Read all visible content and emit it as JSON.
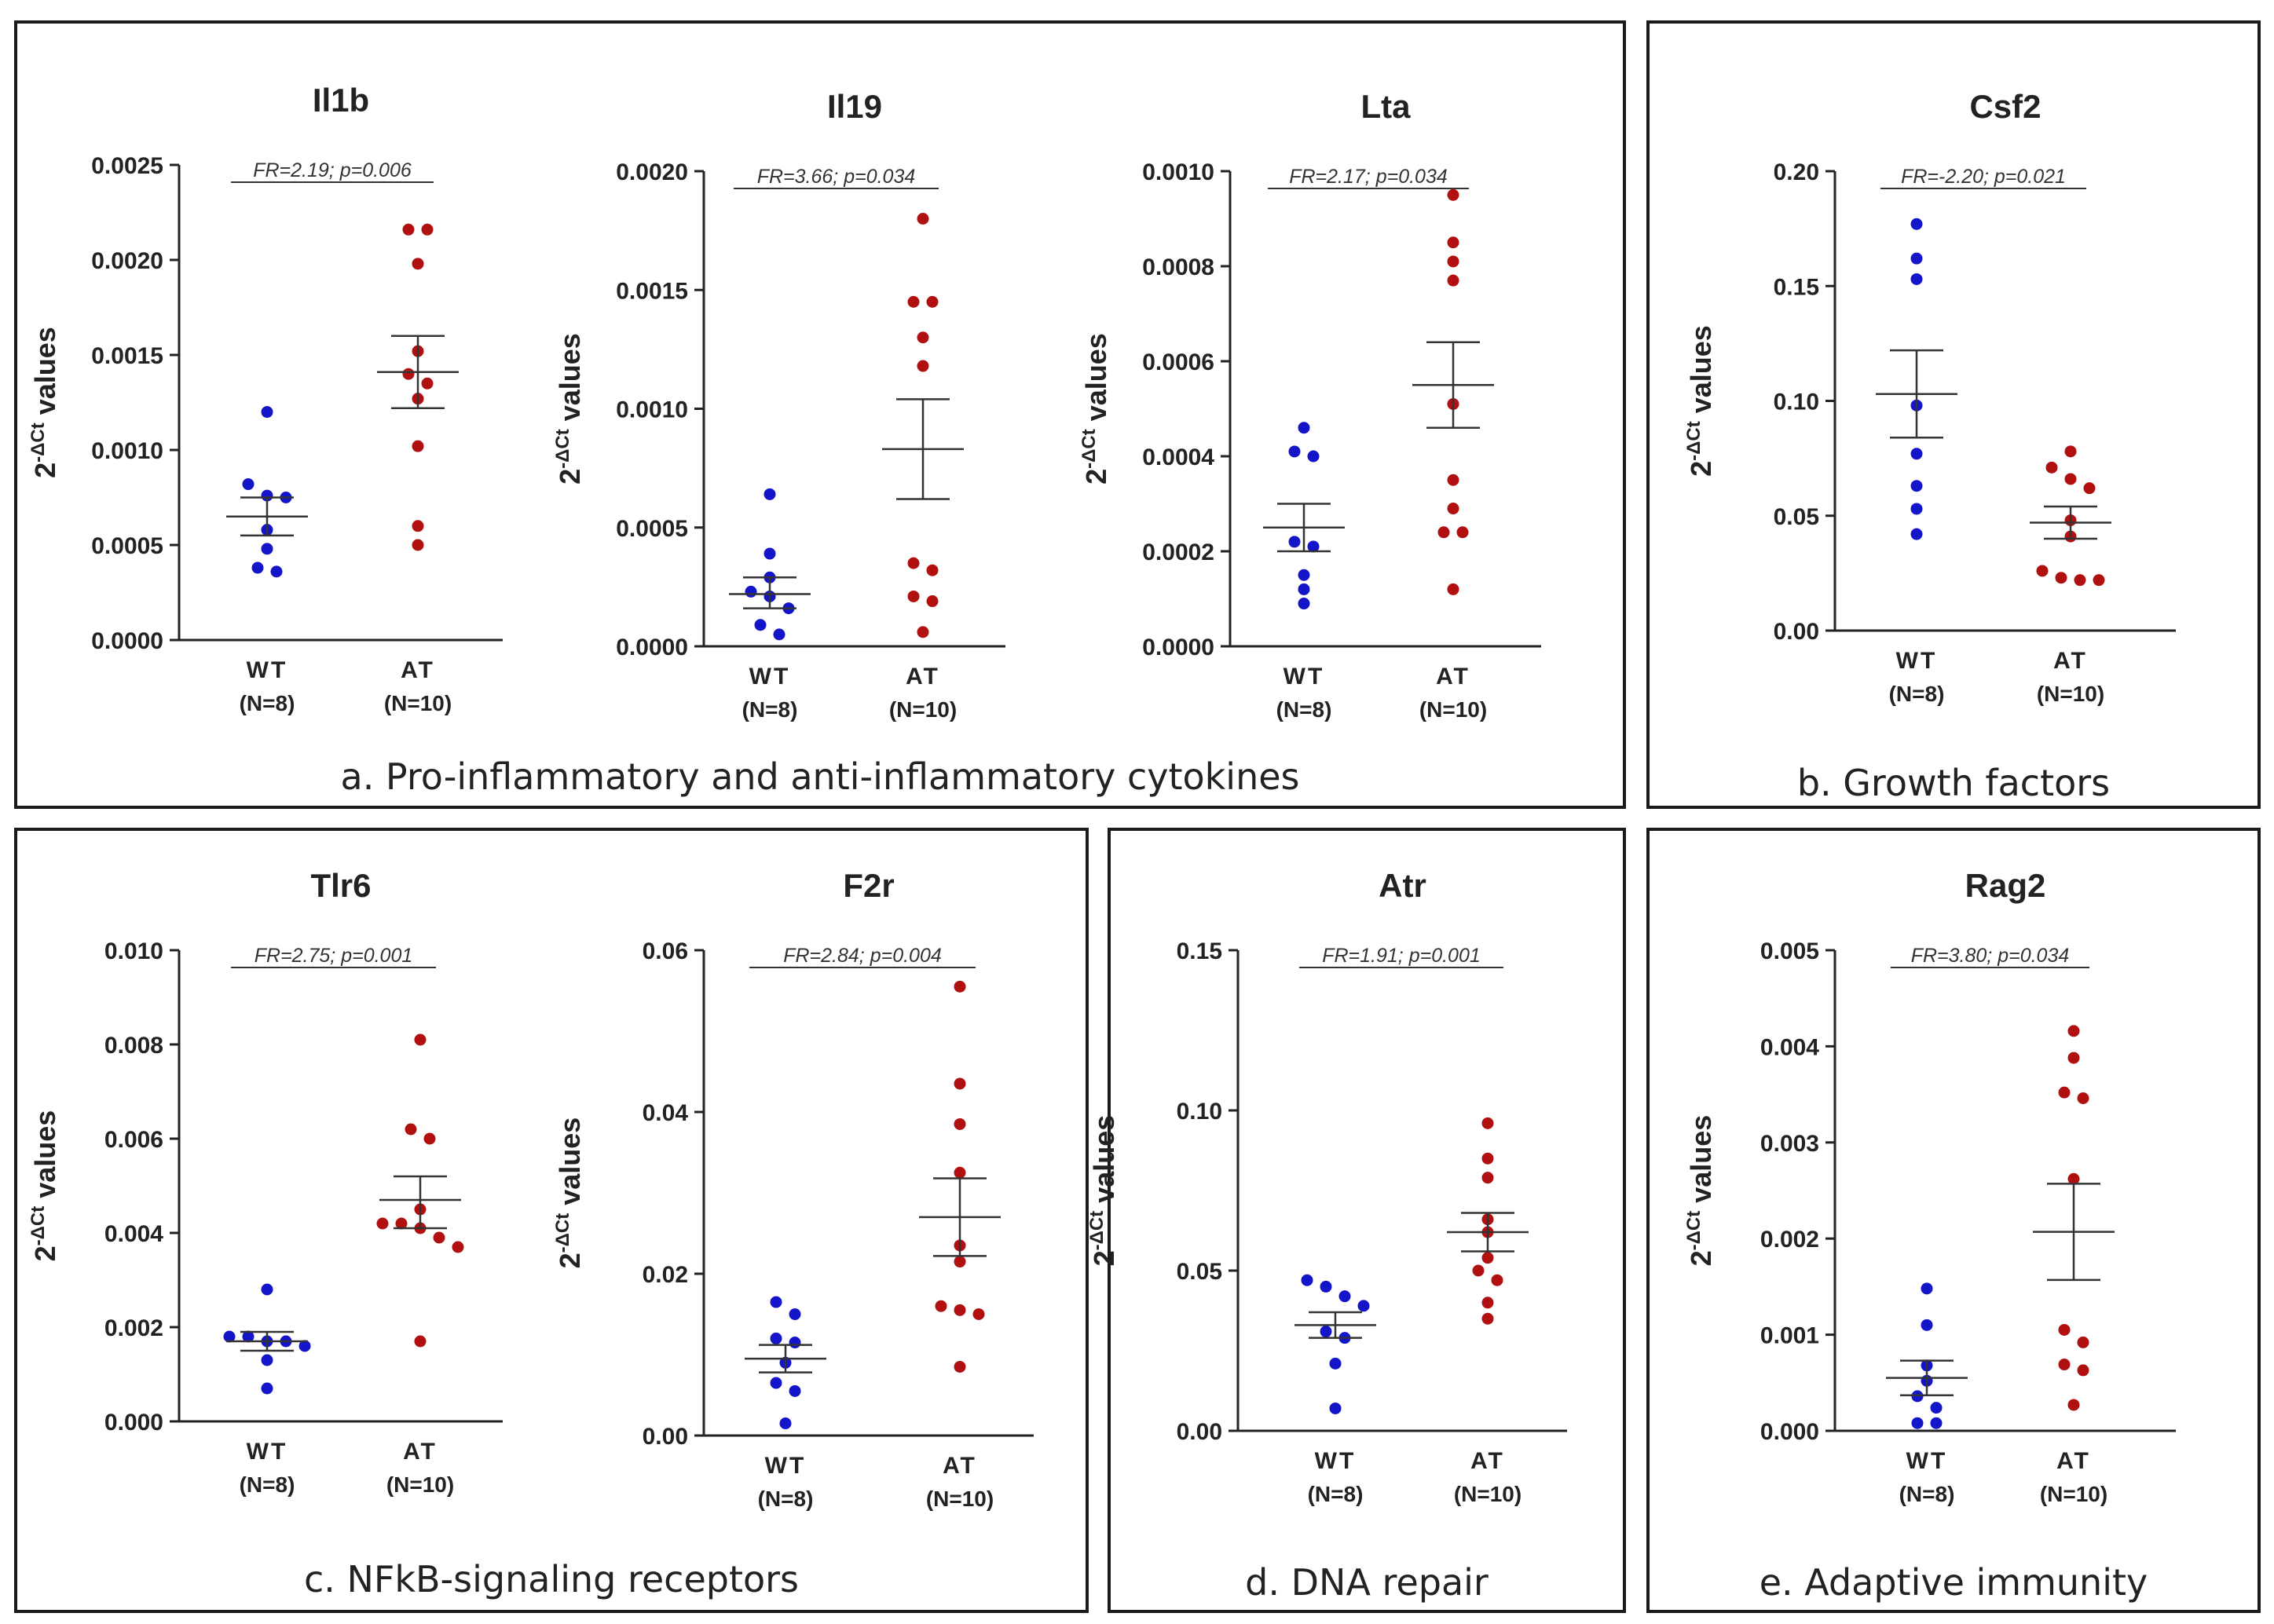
{
  "colors": {
    "wt": "#1414c8",
    "at": "#b01010",
    "axis": "#222222",
    "mean": "#333333",
    "frame": "#1a1a1a"
  },
  "panels": [
    {
      "id": "a",
      "caption": "a. Pro-inflammatory and anti-inflammatory cytokines"
    },
    {
      "id": "b",
      "caption": "b. Growth factors"
    },
    {
      "id": "c",
      "caption": "c. NFkB-signaling receptors"
    },
    {
      "id": "d",
      "caption": "d. DNA repair"
    },
    {
      "id": "e",
      "caption": "e. Adaptive immunity"
    }
  ],
  "ylabel": {
    "prefix": "2",
    "sup": "-ΔCt",
    "suffix": " values"
  },
  "chart_data": [
    {
      "type": "scatter",
      "panel": "a",
      "title": "Il1b",
      "annotation": "FR=2.19; p=0.006",
      "ylim": [
        0,
        0.0025
      ],
      "ticks": [
        "0.0000",
        "0.0005",
        "0.0010",
        "0.0015",
        "0.0020",
        "0.0025"
      ],
      "categories": [
        "WT",
        "AT"
      ],
      "category_n": [
        "(N=8)",
        "(N=10)"
      ],
      "series": [
        {
          "name": "WT",
          "values": [
            0.0012,
            0.00082,
            0.00076,
            0.00075,
            0.00058,
            0.00048,
            0.00038,
            0.00036
          ],
          "mean": 0.00065,
          "sem_low": 0.00055,
          "sem_high": 0.00075
        },
        {
          "name": "AT",
          "values": [
            0.00216,
            0.00216,
            0.00198,
            0.00152,
            0.0014,
            0.00135,
            0.00127,
            0.00102,
            0.0006,
            0.0005
          ],
          "mean": 0.00141,
          "sem_low": 0.00122,
          "sem_high": 0.0016
        }
      ]
    },
    {
      "type": "scatter",
      "panel": "a",
      "title": "Il19",
      "annotation": "FR=3.66; p=0.034",
      "ylim": [
        0,
        0.002
      ],
      "ticks": [
        "0.0000",
        "0.0005",
        "0.0010",
        "0.0015",
        "0.0020"
      ],
      "categories": [
        "WT",
        "AT"
      ],
      "category_n": [
        "(N=8)",
        "(N=10)"
      ],
      "series": [
        {
          "name": "WT",
          "values": [
            0.00064,
            0.00039,
            0.00029,
            0.00023,
            0.00021,
            0.00016,
            9e-05,
            5e-05
          ],
          "mean": 0.00022,
          "sem_low": 0.00016,
          "sem_high": 0.00029
        },
        {
          "name": "AT",
          "values": [
            0.0018,
            0.00145,
            0.00145,
            0.0013,
            0.00118,
            0.00035,
            0.00032,
            0.00021,
            0.00019,
            6e-05
          ],
          "mean": 0.00083,
          "sem_low": 0.00062,
          "sem_high": 0.00104
        }
      ]
    },
    {
      "type": "scatter",
      "panel": "a",
      "title": "Lta",
      "annotation": "FR=2.17; p=0.034",
      "ylim": [
        0,
        0.001
      ],
      "ticks": [
        "0.0000",
        "0.0002",
        "0.0004",
        "0.0006",
        "0.0008",
        "0.0010"
      ],
      "categories": [
        "WT",
        "AT"
      ],
      "category_n": [
        "(N=8)",
        "(N=10)"
      ],
      "series": [
        {
          "name": "WT",
          "values": [
            0.00046,
            0.00041,
            0.0004,
            0.00022,
            0.00021,
            0.00015,
            0.00012,
            9e-05
          ],
          "mean": 0.00025,
          "sem_low": 0.0002,
          "sem_high": 0.0003
        },
        {
          "name": "AT",
          "values": [
            0.00095,
            0.00085,
            0.00081,
            0.00077,
            0.00051,
            0.00035,
            0.00029,
            0.00024,
            0.00024,
            0.00012
          ],
          "mean": 0.00055,
          "sem_low": 0.00046,
          "sem_high": 0.00064
        }
      ]
    },
    {
      "type": "scatter",
      "panel": "b",
      "title": "Csf2",
      "annotation": "FR=-2.20; p=0.021",
      "ylim": [
        0,
        0.2
      ],
      "ticks": [
        "0.00",
        "0.05",
        "0.10",
        "0.15",
        "0.20"
      ],
      "categories": [
        "WT",
        "AT"
      ],
      "category_n": [
        "(N=8)",
        "(N=10)"
      ],
      "series": [
        {
          "name": "WT",
          "values": [
            0.177,
            0.162,
            0.153,
            0.098,
            0.077,
            0.063,
            0.053,
            0.042
          ],
          "mean": 0.103,
          "sem_low": 0.084,
          "sem_high": 0.122
        },
        {
          "name": "AT",
          "values": [
            0.078,
            0.071,
            0.066,
            0.062,
            0.048,
            0.041,
            0.026,
            0.023,
            0.022,
            0.022
          ],
          "mean": 0.047,
          "sem_low": 0.04,
          "sem_high": 0.054
        }
      ]
    },
    {
      "type": "scatter",
      "panel": "c",
      "title": "Tlr6",
      "annotation": "FR=2.75; p=0.001",
      "ylim": [
        0,
        0.01
      ],
      "ticks": [
        "0.000",
        "0.002",
        "0.004",
        "0.006",
        "0.008",
        "0.010"
      ],
      "categories": [
        "WT",
        "AT"
      ],
      "category_n": [
        "(N=8)",
        "(N=10)"
      ],
      "series": [
        {
          "name": "WT",
          "values": [
            0.0028,
            0.0018,
            0.0018,
            0.0017,
            0.0017,
            0.0016,
            0.0013,
            0.0007
          ],
          "mean": 0.0017,
          "sem_low": 0.0015,
          "sem_high": 0.0019
        },
        {
          "name": "AT",
          "values": [
            0.0081,
            0.0062,
            0.006,
            0.0045,
            0.0042,
            0.0042,
            0.0041,
            0.0039,
            0.0037,
            0.0017
          ],
          "mean": 0.0047,
          "sem_low": 0.0041,
          "sem_high": 0.0052
        }
      ]
    },
    {
      "type": "scatter",
      "panel": "c",
      "title": "F2r",
      "annotation": "FR=2.84; p=0.004",
      "ylim": [
        0,
        0.06
      ],
      "ticks": [
        "0.00",
        "0.02",
        "0.04",
        "0.06"
      ],
      "categories": [
        "WT",
        "AT"
      ],
      "category_n": [
        "(N=8)",
        "(N=10)"
      ],
      "series": [
        {
          "name": "WT",
          "values": [
            0.0165,
            0.015,
            0.012,
            0.0115,
            0.009,
            0.0065,
            0.0055,
            0.0015
          ],
          "mean": 0.0095,
          "sem_low": 0.0078,
          "sem_high": 0.0112
        },
        {
          "name": "AT",
          "values": [
            0.0555,
            0.0435,
            0.0385,
            0.0325,
            0.0235,
            0.0215,
            0.016,
            0.0155,
            0.015,
            0.0085
          ],
          "mean": 0.027,
          "sem_low": 0.0222,
          "sem_high": 0.0318
        }
      ]
    },
    {
      "type": "scatter",
      "panel": "d",
      "title": "Atr",
      "annotation": "FR=1.91; p=0.001",
      "ylim": [
        0,
        0.15
      ],
      "ticks": [
        "0.00",
        "0.05",
        "0.10",
        "0.15"
      ],
      "categories": [
        "WT",
        "AT"
      ],
      "category_n": [
        "(N=8)",
        "(N=10)"
      ],
      "series": [
        {
          "name": "WT",
          "values": [
            0.047,
            0.045,
            0.042,
            0.039,
            0.031,
            0.029,
            0.021,
            0.007
          ],
          "mean": 0.033,
          "sem_low": 0.029,
          "sem_high": 0.037
        },
        {
          "name": "AT",
          "values": [
            0.096,
            0.085,
            0.079,
            0.066,
            0.062,
            0.054,
            0.05,
            0.047,
            0.04,
            0.035
          ],
          "mean": 0.062,
          "sem_low": 0.056,
          "sem_high": 0.068
        }
      ]
    },
    {
      "type": "scatter",
      "panel": "e",
      "title": "Rag2",
      "annotation": "FR=3.80; p=0.034",
      "ylim": [
        0,
        0.005
      ],
      "ticks": [
        "0.000",
        "0.001",
        "0.002",
        "0.003",
        "0.004",
        "0.005"
      ],
      "categories": [
        "WT",
        "AT"
      ],
      "category_n": [
        "(N=8)",
        "(N=10)"
      ],
      "series": [
        {
          "name": "WT",
          "values": [
            0.00148,
            0.0011,
            0.00068,
            0.00052,
            0.00036,
            0.00024,
            8e-05,
            8e-05
          ],
          "mean": 0.00055,
          "sem_low": 0.00037,
          "sem_high": 0.00073
        },
        {
          "name": "AT",
          "values": [
            0.00416,
            0.00388,
            0.00352,
            0.00346,
            0.00262,
            0.00105,
            0.00092,
            0.00069,
            0.00063,
            0.00027
          ],
          "mean": 0.00207,
          "sem_low": 0.00157,
          "sem_high": 0.00257
        }
      ]
    }
  ]
}
